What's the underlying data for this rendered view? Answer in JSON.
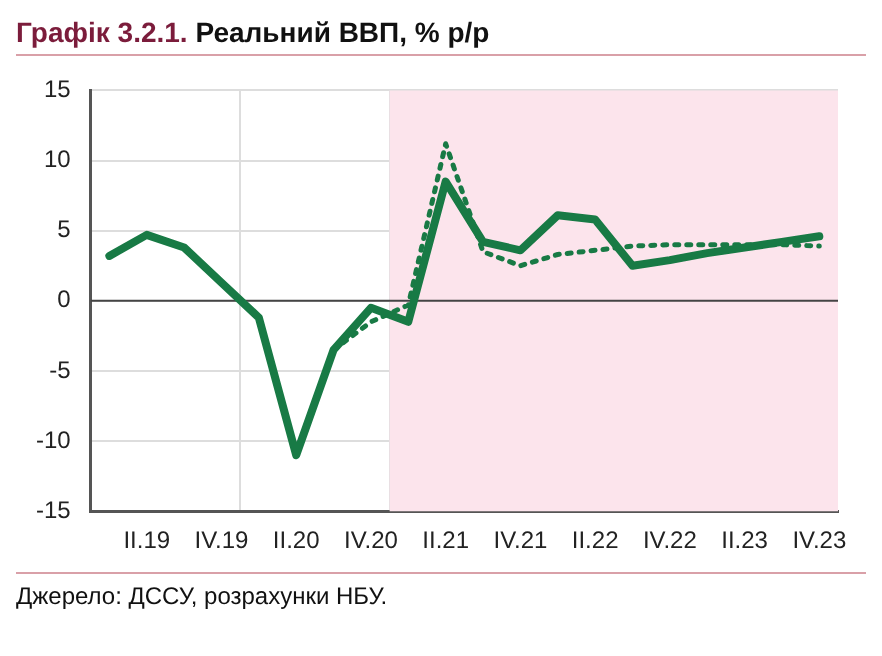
{
  "chart_data": {
    "type": "line",
    "title": "Графік 3.2.1. Реальний ВВП, % р/р",
    "categories": [
      null,
      "II.19",
      null,
      "IV.19",
      null,
      "II.20",
      null,
      "IV.20",
      null,
      "II.21",
      null,
      "IV.21",
      null,
      "II.22",
      null,
      "IV.22",
      null,
      "II.23",
      null,
      "IV.23"
    ],
    "series": [
      {
        "color": "#187a45",
        "line_style": "solid",
        "values": [
          3.2,
          4.7,
          3.8,
          1.3,
          -1.2,
          -11.0,
          -3.5,
          -0.5,
          -1.5,
          8.5,
          4.2,
          3.6,
          6.1,
          5.8,
          2.5,
          2.9,
          3.4,
          3.8,
          4.2,
          4.6
        ]
      },
      {
        "color": "#187a45",
        "line_style": "dotted",
        "values": [
          null,
          null,
          null,
          null,
          null,
          null,
          -3.5,
          -1.5,
          -0.3,
          11.2,
          3.5,
          2.5,
          3.3,
          3.6,
          3.9,
          4.0,
          4.0,
          4.0,
          4.0,
          3.9
        ]
      }
    ],
    "ylim": [
      -15,
      15
    ],
    "yticks": [
      -15,
      -10,
      -5,
      0,
      5,
      10,
      15
    ],
    "grid": true,
    "legend": false,
    "marker": "none",
    "bands": [
      {
        "axis": "x",
        "from": "IV.20",
        "to": "IV.23",
        "color": "#fce4ec"
      }
    ],
    "annotations": [
      "Джерело: ДССУ, розрахунки НБУ."
    ]
  }
}
